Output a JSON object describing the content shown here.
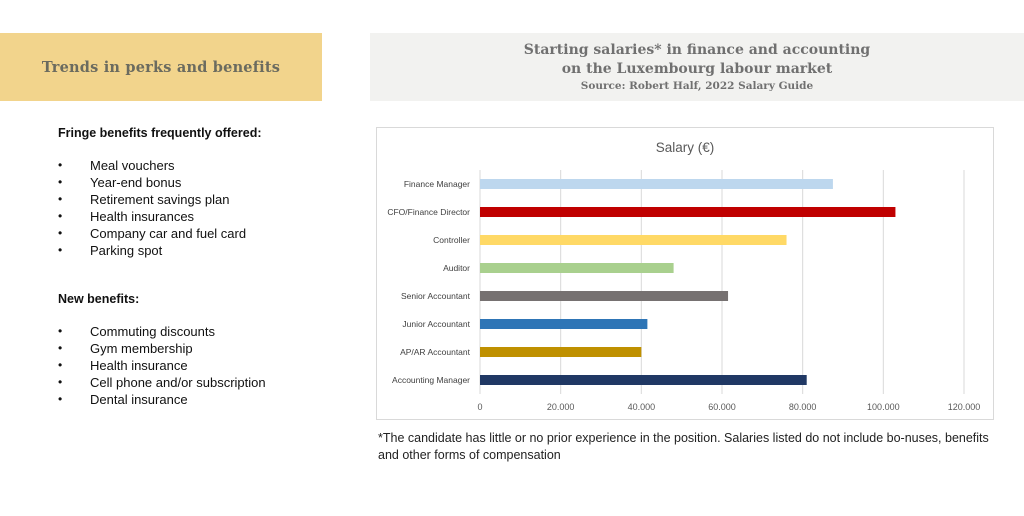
{
  "left_header": {
    "title": "Trends in perks and benefits"
  },
  "right_header": {
    "line1": "Starting salaries* in finance and accounting",
    "line2": "on the Luxembourg labour market",
    "source": "Source: Robert Half, 2022 Salary Guide"
  },
  "fringe": {
    "heading": "Fringe benefits frequently offered:",
    "items": [
      "Meal vouchers",
      "Year-end bonus",
      "Retirement savings plan",
      "Health insurances",
      "Company car and fuel card",
      "Parking spot"
    ]
  },
  "new_benefits": {
    "heading": "New benefits:",
    "items": [
      "Commuting discounts",
      "Gym membership",
      "Health insurance",
      "Cell phone and/or subscription",
      "Dental insurance"
    ]
  },
  "footnote": "*The candidate has little or no prior experience in the position. Salaries listed do not include bo-nuses, benefits and other forms of compensation",
  "colors": {
    "left_banner": "#f2d48c",
    "right_banner": "#f2f2f0",
    "gridline": "#d9d9d9"
  },
  "chart_data": {
    "type": "bar",
    "orientation": "horizontal",
    "title": "Salary (€)",
    "xlabel": "",
    "ylabel": "",
    "categories": [
      "Finance Manager",
      "CFO/Finance Director",
      "Controller",
      "Auditor",
      "Senior Accountant",
      "Junior Accountant",
      "AP/AR Accountant",
      "Accounting Manager"
    ],
    "values": [
      87500,
      103000,
      76000,
      48000,
      61500,
      41500,
      40000,
      81000
    ],
    "bar_colors": [
      "#bdd7ee",
      "#c00000",
      "#ffd966",
      "#a9d08e",
      "#767171",
      "#2e75b6",
      "#bf9000",
      "#203864"
    ],
    "xlim": [
      0,
      120000
    ],
    "xticks": [
      0,
      20000,
      40000,
      60000,
      80000,
      100000,
      120000
    ],
    "xtick_labels": [
      "0",
      "20.000",
      "40.000",
      "60.000",
      "80.000",
      "100.000",
      "120.000"
    ],
    "grid": true,
    "legend": "none"
  }
}
